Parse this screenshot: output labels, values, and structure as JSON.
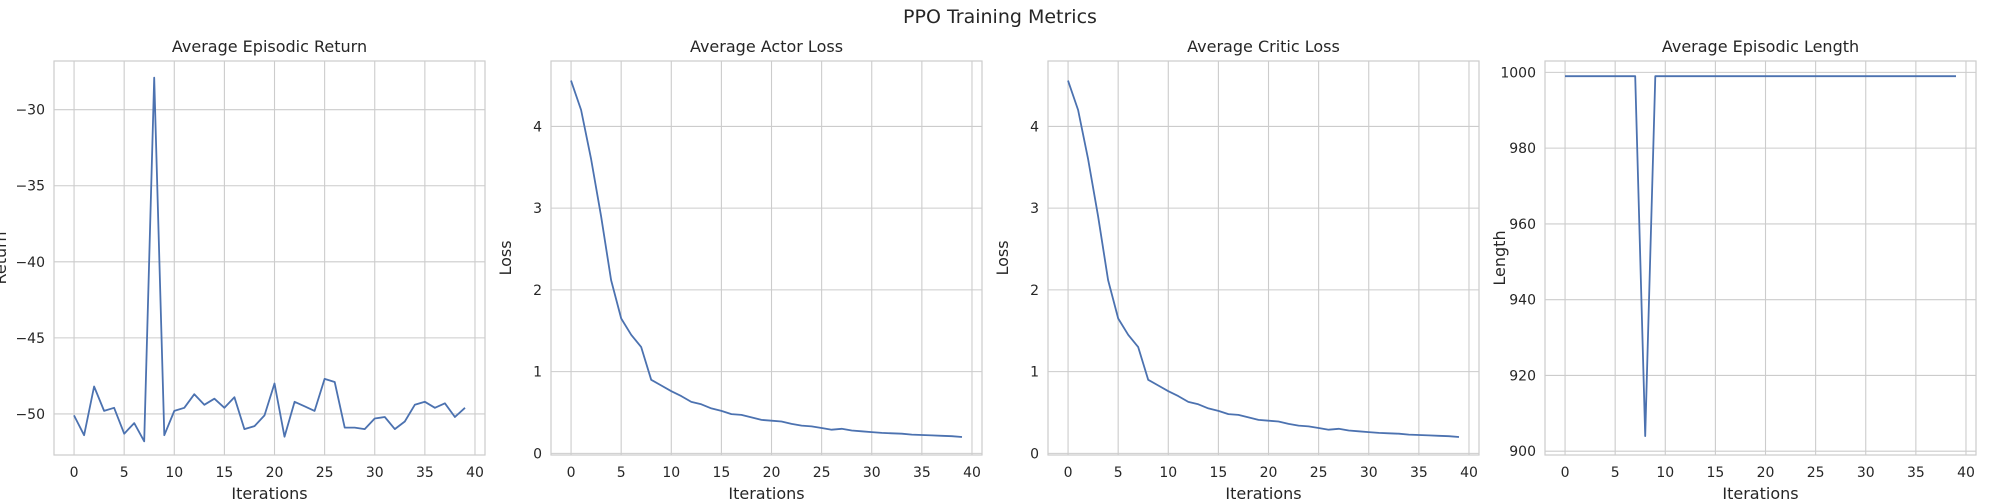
{
  "figure": {
    "title": "PPO Training Metrics"
  },
  "colors": {
    "line": "#4c72b0",
    "grid": "#cccccc",
    "text": "#262626"
  },
  "chart_data": [
    {
      "type": "line",
      "title": "Average Episodic Return",
      "xlabel": "Iterations",
      "ylabel": "Return",
      "xlim": [
        -2,
        41
      ],
      "ylim": [
        -52.7,
        -26.8
      ],
      "xticks": [
        0,
        5,
        10,
        15,
        20,
        25,
        30,
        35,
        40
      ],
      "yticks": [
        -50,
        -45,
        -40,
        -35,
        -30
      ],
      "grid": true,
      "series": [
        {
          "x": [
            0,
            1,
            2,
            3,
            4,
            5,
            6,
            7,
            8,
            9,
            10,
            11,
            12,
            13,
            14,
            15,
            16,
            17,
            18,
            19,
            20,
            21,
            22,
            23,
            24,
            25,
            26,
            27,
            28,
            29,
            30,
            31,
            32,
            33,
            34,
            35,
            36,
            37,
            38,
            39
          ],
          "values": [
            -50.1,
            -51.4,
            -48.2,
            -49.8,
            -49.6,
            -51.3,
            -50.6,
            -51.8,
            -27.9,
            -51.4,
            -49.8,
            -49.6,
            -48.7,
            -49.4,
            -49.0,
            -49.6,
            -48.9,
            -51.0,
            -50.8,
            -50.1,
            -48.0,
            -51.5,
            -49.2,
            -49.5,
            -49.8,
            -47.7,
            -47.9,
            -50.9,
            -50.9,
            -51.0,
            -50.3,
            -50.2,
            -51.0,
            -50.5,
            -49.4,
            -49.2,
            -49.6,
            -49.3,
            -50.2,
            -49.6
          ]
        }
      ]
    },
    {
      "type": "line",
      "title": "Average Actor Loss",
      "xlabel": "Iterations",
      "ylabel": "Loss",
      "xlim": [
        -2,
        41
      ],
      "ylim": [
        -0.02,
        4.8
      ],
      "xticks": [
        0,
        5,
        10,
        15,
        20,
        25,
        30,
        35,
        40
      ],
      "yticks": [
        0,
        1,
        2,
        3,
        4
      ],
      "grid": true,
      "series": [
        {
          "x": [
            0,
            1,
            2,
            3,
            4,
            5,
            6,
            7,
            8,
            9,
            10,
            11,
            12,
            13,
            14,
            15,
            16,
            17,
            18,
            19,
            20,
            21,
            22,
            23,
            24,
            25,
            26,
            27,
            28,
            29,
            30,
            31,
            32,
            33,
            34,
            35,
            36,
            37,
            38,
            39
          ],
          "values": [
            4.56,
            4.2,
            3.6,
            2.9,
            2.12,
            1.65,
            1.45,
            1.3,
            0.9,
            0.83,
            0.76,
            0.7,
            0.63,
            0.6,
            0.55,
            0.52,
            0.48,
            0.47,
            0.44,
            0.41,
            0.4,
            0.39,
            0.36,
            0.34,
            0.33,
            0.31,
            0.29,
            0.3,
            0.28,
            0.27,
            0.26,
            0.25,
            0.245,
            0.24,
            0.23,
            0.225,
            0.22,
            0.215,
            0.21,
            0.2
          ]
        }
      ]
    },
    {
      "type": "line",
      "title": "Average Critic Loss",
      "xlabel": "Iterations",
      "ylabel": "Loss",
      "xlim": [
        -2,
        41
      ],
      "ylim": [
        -0.02,
        4.8
      ],
      "xticks": [
        0,
        5,
        10,
        15,
        20,
        25,
        30,
        35,
        40
      ],
      "yticks": [
        0,
        1,
        2,
        3,
        4
      ],
      "grid": true,
      "series": [
        {
          "x": [
            0,
            1,
            2,
            3,
            4,
            5,
            6,
            7,
            8,
            9,
            10,
            11,
            12,
            13,
            14,
            15,
            16,
            17,
            18,
            19,
            20,
            21,
            22,
            23,
            24,
            25,
            26,
            27,
            28,
            29,
            30,
            31,
            32,
            33,
            34,
            35,
            36,
            37,
            38,
            39
          ],
          "values": [
            4.56,
            4.2,
            3.6,
            2.9,
            2.12,
            1.65,
            1.45,
            1.3,
            0.9,
            0.83,
            0.76,
            0.7,
            0.63,
            0.6,
            0.55,
            0.52,
            0.48,
            0.47,
            0.44,
            0.41,
            0.4,
            0.39,
            0.36,
            0.34,
            0.33,
            0.31,
            0.29,
            0.3,
            0.28,
            0.27,
            0.26,
            0.25,
            0.245,
            0.24,
            0.23,
            0.225,
            0.22,
            0.215,
            0.21,
            0.2
          ]
        }
      ]
    },
    {
      "type": "line",
      "title": "Average Episodic Length",
      "xlabel": "Iterations",
      "ylabel": "Length",
      "xlim": [
        -2,
        41
      ],
      "ylim": [
        899,
        1003
      ],
      "xticks": [
        0,
        5,
        10,
        15,
        20,
        25,
        30,
        35,
        40
      ],
      "yticks": [
        900,
        920,
        940,
        960,
        980,
        1000
      ],
      "grid": true,
      "series": [
        {
          "x": [
            0,
            1,
            2,
            3,
            4,
            5,
            6,
            7,
            8,
            9,
            10,
            11,
            12,
            13,
            14,
            15,
            16,
            17,
            18,
            19,
            20,
            21,
            22,
            23,
            24,
            25,
            26,
            27,
            28,
            29,
            30,
            31,
            32,
            33,
            34,
            35,
            36,
            37,
            38,
            39
          ],
          "values": [
            999,
            999,
            999,
            999,
            999,
            999,
            999,
            999,
            904,
            999,
            999,
            999,
            999,
            999,
            999,
            999,
            999,
            999,
            999,
            999,
            999,
            999,
            999,
            999,
            999,
            999,
            999,
            999,
            999,
            999,
            999,
            999,
            999,
            999,
            999,
            999,
            999,
            999,
            999,
            999
          ]
        }
      ]
    }
  ]
}
